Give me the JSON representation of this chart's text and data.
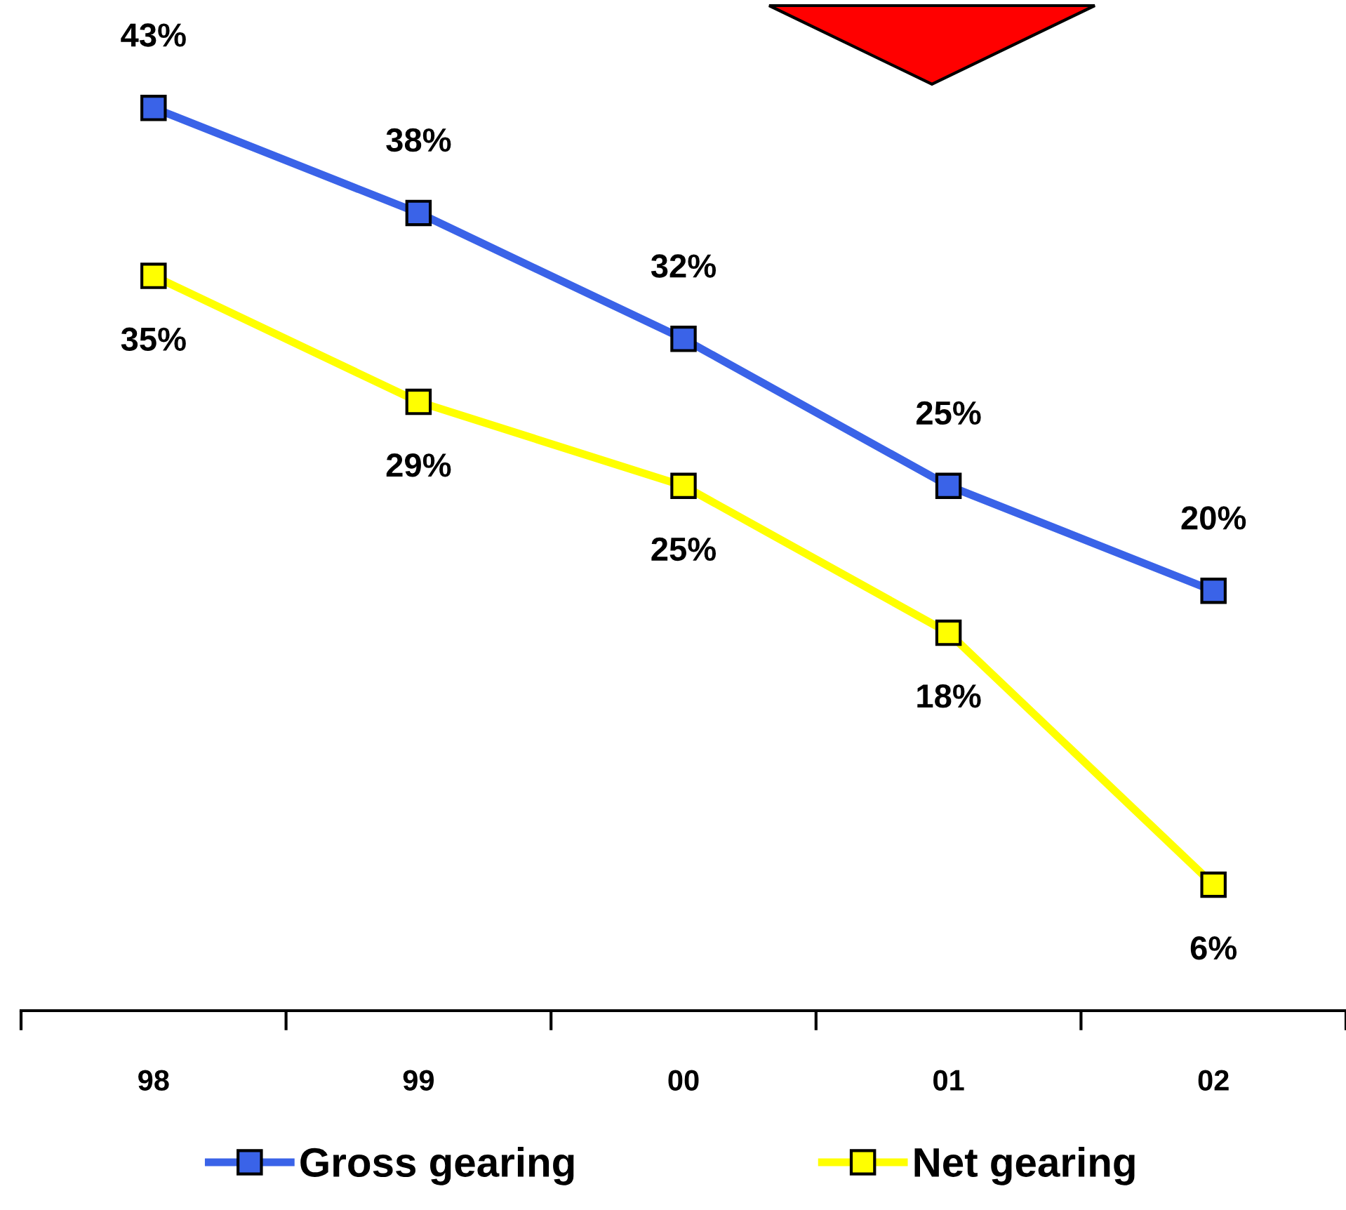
{
  "chart_data": {
    "type": "line",
    "categories": [
      "98",
      "99",
      "00",
      "01",
      "02"
    ],
    "series": [
      {
        "name": "Gross gearing",
        "color": "#3a63e8",
        "values": [
          43,
          38,
          32,
          25,
          20
        ],
        "value_labels": [
          "43%",
          "38%",
          "32%",
          "25%",
          "20%"
        ]
      },
      {
        "name": "Net gearing",
        "color": "#ffff00",
        "values": [
          35,
          29,
          25,
          18,
          6
        ],
        "value_labels": [
          "35%",
          "29%",
          "25%",
          "18%",
          "6%"
        ]
      }
    ],
    "marker": "square",
    "legend": "bottom",
    "grid": false
  }
}
